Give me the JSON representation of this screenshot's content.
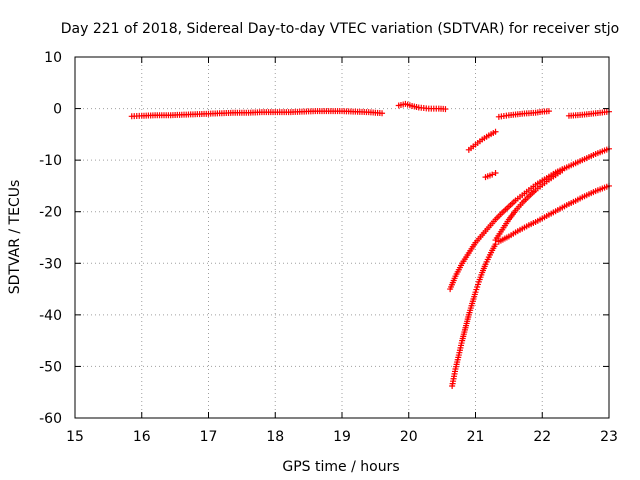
{
  "chart_data": {
    "type": "scatter",
    "title": "Day 221 of 2018, Sidereal Day-to-day VTEC variation (SDTVAR) for receiver stjo",
    "xlabel": "GPS time / hours",
    "ylabel": "SDTVAR / TECUs",
    "xlim": [
      15,
      23
    ],
    "ylim": [
      -60,
      10
    ],
    "xticks": [
      15,
      16,
      17,
      18,
      19,
      20,
      21,
      22,
      23
    ],
    "yticks": [
      10,
      0,
      -10,
      -20,
      -30,
      -40,
      -50,
      -60
    ],
    "grid": true,
    "marker": "plus",
    "color": "#ff0000",
    "series": [
      {
        "x": [
          15.85,
          16.0,
          16.2,
          16.4,
          16.6,
          16.8,
          17.0,
          17.2,
          17.4,
          17.6,
          17.8,
          18.0,
          18.2,
          18.4,
          18.6,
          18.8,
          19.0,
          19.2,
          19.4,
          19.6
        ],
        "y": [
          -1.5,
          -1.4,
          -1.3,
          -1.3,
          -1.2,
          -1.1,
          -1.0,
          -0.9,
          -0.8,
          -0.8,
          -0.7,
          -0.7,
          -0.7,
          -0.6,
          -0.5,
          -0.5,
          -0.5,
          -0.6,
          -0.7,
          -0.9
        ]
      },
      {
        "x": [
          19.85,
          19.95,
          20.05,
          20.15,
          20.3,
          20.45,
          20.55
        ],
        "y": [
          0.6,
          0.9,
          0.5,
          0.2,
          0.0,
          0.0,
          -0.1
        ]
      },
      {
        "x": [
          20.9,
          21.0,
          21.1,
          21.2,
          21.3
        ],
        "y": [
          -8.0,
          -7.0,
          -6.0,
          -5.2,
          -4.5
        ]
      },
      {
        "x": [
          21.15,
          21.25,
          21.3
        ],
        "y": [
          -13.3,
          -12.8,
          -12.5
        ]
      },
      {
        "x": [
          21.35,
          21.5,
          21.7,
          21.9,
          22.0,
          22.1
        ],
        "y": [
          -1.6,
          -1.3,
          -1.0,
          -0.8,
          -0.6,
          -0.5
        ]
      },
      {
        "x": [
          22.4,
          22.6,
          22.8,
          23.0
        ],
        "y": [
          -1.4,
          -1.2,
          -0.9,
          -0.6
        ]
      },
      {
        "x": [
          20.62,
          20.7,
          20.8,
          20.9,
          21.0,
          21.1,
          21.2,
          21.3,
          21.4,
          21.5,
          21.6,
          21.7,
          21.8,
          21.9,
          22.0,
          22.1,
          22.2,
          22.3
        ],
        "y": [
          -35.0,
          -32.5,
          -30.0,
          -28.0,
          -26.0,
          -24.5,
          -23.0,
          -21.5,
          -20.2,
          -19.0,
          -17.8,
          -16.8,
          -15.8,
          -14.8,
          -14.0,
          -13.2,
          -12.4,
          -11.8
        ]
      },
      {
        "x": [
          20.65,
          20.7,
          20.75,
          20.8,
          20.85,
          20.9,
          20.95,
          21.0,
          21.05,
          21.1,
          21.15,
          21.2,
          21.25,
          21.3
        ],
        "y": [
          -53.8,
          -50.5,
          -47.8,
          -45.0,
          -42.5,
          -40.0,
          -37.8,
          -35.6,
          -33.6,
          -31.8,
          -30.2,
          -28.8,
          -27.5,
          -26.3
        ]
      },
      {
        "x": [
          21.3,
          21.4,
          21.5,
          21.6,
          21.7,
          21.8,
          21.9,
          22.0,
          22.1,
          22.2,
          22.3
        ],
        "y": [
          -25.5,
          -23.5,
          -21.5,
          -19.8,
          -18.3,
          -17.0,
          -15.8,
          -14.8,
          -13.8,
          -12.9,
          -12.0
        ]
      },
      {
        "x": [
          22.2,
          22.3,
          22.4,
          22.5,
          22.6,
          22.7,
          22.8,
          22.9,
          23.0
        ],
        "y": [
          -12.4,
          -11.8,
          -11.2,
          -10.6,
          -10.0,
          -9.4,
          -8.8,
          -8.3,
          -7.8
        ]
      },
      {
        "x": [
          21.35,
          21.5,
          21.6,
          21.7,
          21.8,
          21.9,
          22.0,
          22.1,
          22.2,
          22.3,
          22.4,
          22.5,
          22.6,
          22.7,
          22.8,
          22.9,
          23.0
        ],
        "y": [
          -25.8,
          -24.8,
          -24.0,
          -23.3,
          -22.6,
          -22.0,
          -21.3,
          -20.6,
          -19.9,
          -19.2,
          -18.5,
          -17.9,
          -17.2,
          -16.6,
          -16.0,
          -15.5,
          -15.0
        ]
      }
    ]
  }
}
